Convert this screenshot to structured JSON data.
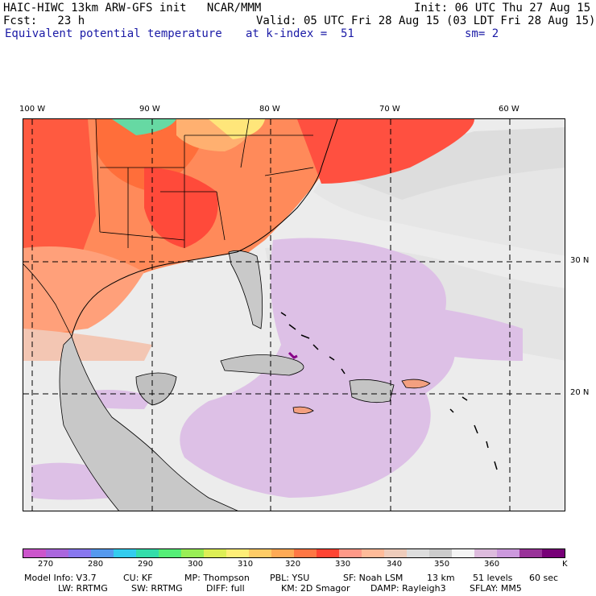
{
  "header": {
    "line1_left": "HAIC-HIWC 13km ARW-GFS init   NCAR/MMM",
    "line1_right": "Init: 06 UTC Thu 27 Aug 15",
    "line2_left": "Fcst:   23 h",
    "line2_right": "Valid: 05 UTC Fri 28 Aug 15 (03 LDT Fri 28 Aug 15)",
    "line3_field": "Equivalent potential temperature",
    "line3_level": "at k-index =  51",
    "line3_smooth": "sm= 2"
  },
  "map": {
    "lon_labels": [
      "100 W",
      "90 W",
      "80 W",
      "70 W",
      "60 W"
    ],
    "lat_labels": [
      "30 N",
      "20 N"
    ]
  },
  "colorbar": {
    "colors": [
      "#cc55cc",
      "#aa66dd",
      "#8877ee",
      "#5599ee",
      "#33ccee",
      "#33ddaa",
      "#55ee77",
      "#99ee55",
      "#ddee55",
      "#ffee77",
      "#ffcc66",
      "#ffaa55",
      "#ff7744",
      "#ff4433",
      "#ff9988",
      "#ffbb99",
      "#eeccbb",
      "#dddddd",
      "#cccccc",
      "#f4f4f4",
      "#ddbbdd",
      "#cc99dd",
      "#993399",
      "#770077"
    ],
    "labels": [
      "270",
      "280",
      "290",
      "300",
      "310",
      "320",
      "330",
      "340",
      "350",
      "360"
    ],
    "unit": "K"
  },
  "footer": {
    "model_info": "Model Info: V3.7",
    "cu": "CU: KF",
    "mp": "MP: Thompson",
    "pbl": "PBL: YSU",
    "sf": "SF: Noah LSM",
    "res": "13 km",
    "levels": "51 levels",
    "dt": "60 sec",
    "lw": "LW: RRTMG",
    "sw": "SW: RRTMG",
    "diff": "DIFF: full",
    "km": "KM: 2D Smagor",
    "damp": "DAMP: Rayleigh3",
    "sflay": "SFLAY: MM5"
  }
}
